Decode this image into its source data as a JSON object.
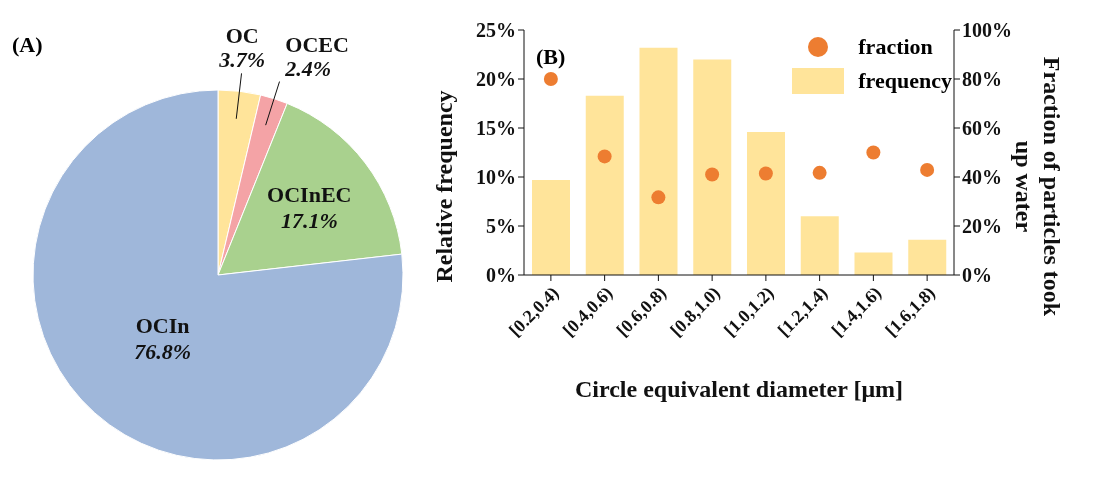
{
  "chart_data": [
    {
      "type": "pie",
      "categories": [
        "OC",
        "OCEC",
        "OCInEC",
        "OCIn"
      ],
      "values": [
        3.7,
        2.4,
        17.1,
        76.8
      ],
      "value_labels": [
        "3.7%",
        "2.4%",
        "17.1%",
        "76.8%"
      ],
      "colors": [
        "#ffe49a",
        "#f4a3a6",
        "#a9d18e",
        "#9fb7da"
      ],
      "annotations": [
        "(A)"
      ]
    },
    {
      "type": "bar",
      "categories": [
        "[0.2,0.4)",
        "[0.4,0.6)",
        "[0.6,0.8)",
        "[0.8,1.0)",
        "[1.0,1.2)",
        "[1.2,1.4)",
        "[1.4,1.6)",
        "[1.6,1.8)"
      ],
      "xlabel": "Circle equivalent diameter [μm]",
      "ylabel": "Relative frequency",
      "y2label": "Fraction of particles took up water",
      "series": [
        {
          "name": "fraction",
          "type": "scatter",
          "axis": "y2",
          "color": "#ed7d31",
          "values": [
            80,
            48.4,
            31.7,
            41,
            41.4,
            41.7,
            50,
            42.9
          ]
        },
        {
          "name": "frequency",
          "type": "bar",
          "color": "#ffe49a",
          "values": [
            9.7,
            18.3,
            23.2,
            22.0,
            14.6,
            6.0,
            2.3,
            3.6
          ]
        }
      ],
      "ylim": [
        0,
        25
      ],
      "yticks": [
        {
          "value": 0,
          "label": "0%"
        },
        {
          "value": 5,
          "label": "5%"
        },
        {
          "value": 10,
          "label": "10%"
        },
        {
          "value": 15,
          "label": "15%"
        },
        {
          "value": 20,
          "label": "20%"
        },
        {
          "value": 25,
          "label": "25%"
        }
      ],
      "y2lim": [
        0,
        100
      ],
      "y2ticks": [
        {
          "value": 0,
          "label": "0%"
        },
        {
          "value": 20,
          "label": "20%"
        },
        {
          "value": 40,
          "label": "40%"
        },
        {
          "value": 60,
          "label": "60%"
        },
        {
          "value": 80,
          "label": "80%"
        },
        {
          "value": 100,
          "label": "100%"
        }
      ],
      "legend": "top right",
      "marker": "circle",
      "grid": false,
      "annotations": [
        "(B)"
      ]
    }
  ]
}
